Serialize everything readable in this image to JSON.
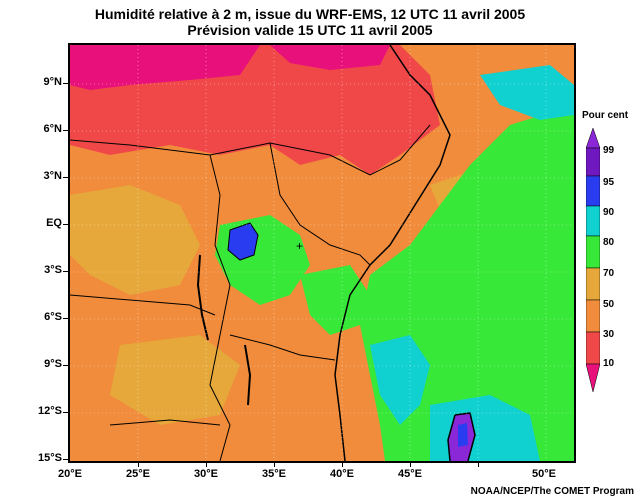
{
  "title": {
    "line1": "Humidité relative à 2 m, issue du WRF-EMS, 12 UTC 11 avril 2005",
    "line2": "Prévision valide 15 UTC 11 avril 2005"
  },
  "axes": {
    "lat_labels": [
      "9°N",
      "6°N",
      "3°N",
      "EQ",
      "3°S",
      "6°S",
      "9°S",
      "12°S",
      "15°S"
    ],
    "lon_labels": [
      "20°E",
      "25°E",
      "30°E",
      "35°E",
      "40°E",
      "45°E",
      "50°E"
    ]
  },
  "legend": {
    "title": "Pour cent",
    "levels": [
      "99",
      "95",
      "90",
      "80",
      "70",
      "50",
      "30",
      "10"
    ]
  },
  "colors": {
    "very_dry": "#e8107a",
    "dry": "#f04848",
    "orange": "#f08c3c",
    "tan": "#e6a83a",
    "green": "#38e838",
    "cyan": "#10d0d0",
    "blue": "#2a3cf0",
    "purple": "#8a28d8",
    "deep_purple": "#7018c0"
  },
  "credit": "NOAA/NCEP/The COMET Program"
}
